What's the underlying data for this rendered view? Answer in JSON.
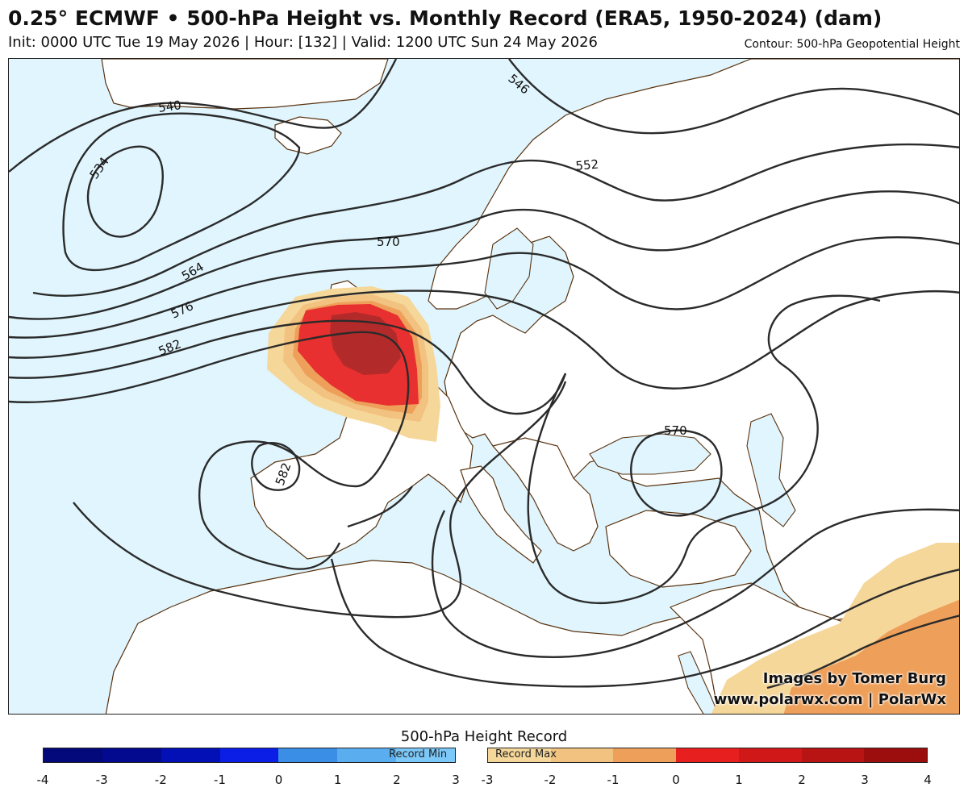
{
  "header": {
    "title": "0.25° ECMWF • 500-hPa Height vs. Monthly Record (ERA5, 1950-2024) (dam)",
    "subtitle": "Init: 0000 UTC Tue 19 May 2026 | Hour: [132] | Valid: 1200 UTC Sun 24 May 2026",
    "contour_note": "Contour: 500-hPa Geopotential Height"
  },
  "map": {
    "region": "Europe, North Atlantic and North Africa",
    "contour_labels": [
      "540",
      "534",
      "546",
      "552",
      "570",
      "564",
      "576",
      "582",
      "582",
      "570"
    ],
    "colors": {
      "ocean": "#e0f5fd",
      "land": "#ffffff",
      "contour": "#2b2b2b",
      "coast": "#5a3310"
    }
  },
  "credits": {
    "line1": "Images by Tomer Burg",
    "line2": "www.polarwx.com | PolarWx"
  },
  "legend": {
    "title": "500-hPa Height Record",
    "min_label": "Record Min",
    "max_label": "Record Max",
    "min_ticks": [
      "-4",
      "-3",
      "-2",
      "-1",
      "0",
      "1",
      "2",
      "3"
    ],
    "max_ticks": [
      "-3",
      "-2",
      "-1",
      "0",
      "1",
      "2",
      "3",
      "4"
    ],
    "min_colors": [
      "#03087a",
      "#030a8f",
      "#0210b5",
      "#0a1ee6",
      "#3a8ee6",
      "#5aaef0",
      "#7cc8f8"
    ],
    "max_colors": [
      "#f6d79a",
      "#f2c281",
      "#eea05a",
      "#e81f1f",
      "#d01818",
      "#b81414",
      "#9c0e0e"
    ]
  }
}
